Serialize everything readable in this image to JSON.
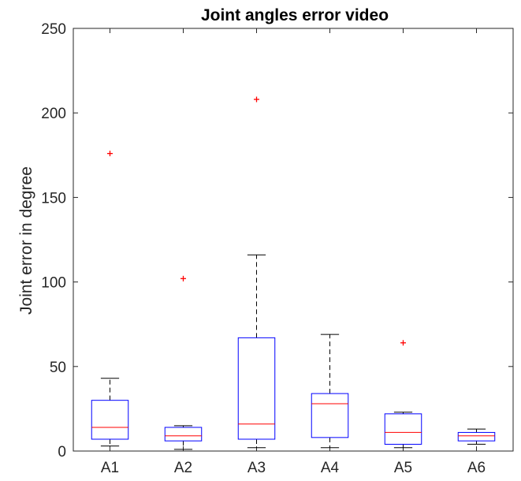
{
  "chart_data": {
    "type": "boxplot",
    "title": "Joint angles error video",
    "xlabel": "",
    "ylabel": "Joint error in degree",
    "ylim": [
      0,
      250
    ],
    "yticks": [
      0,
      50,
      100,
      150,
      200,
      250
    ],
    "grid": false,
    "categories": [
      "A1",
      "A2",
      "A3",
      "A4",
      "A5",
      "A6"
    ],
    "boxes": [
      {
        "category": "A1",
        "whisker_low": 3,
        "q1": 7,
        "median": 14,
        "q3": 30,
        "whisker_high": 43,
        "outliers": [
          176
        ]
      },
      {
        "category": "A2",
        "whisker_low": 1,
        "q1": 6,
        "median": 9,
        "q3": 14,
        "whisker_high": 15,
        "outliers": [
          102
        ]
      },
      {
        "category": "A3",
        "whisker_low": 2,
        "q1": 7,
        "median": 16,
        "q3": 67,
        "whisker_high": 116,
        "outliers": [
          208
        ]
      },
      {
        "category": "A4",
        "whisker_low": 2,
        "q1": 8,
        "median": 28,
        "q3": 34,
        "whisker_high": 69,
        "outliers": []
      },
      {
        "category": "A5",
        "whisker_low": 2,
        "q1": 4,
        "median": 11,
        "q3": 22,
        "whisker_high": 23,
        "outliers": [
          64
        ]
      },
      {
        "category": "A6",
        "whisker_low": 4,
        "q1": 6,
        "median": 9,
        "q3": 11,
        "whisker_high": 13,
        "outliers": []
      }
    ],
    "colors": {
      "box": "#0000ff",
      "median": "#ff0000",
      "whisker": "#000000",
      "outlier": "#ff0000",
      "axis": "#262626"
    }
  }
}
